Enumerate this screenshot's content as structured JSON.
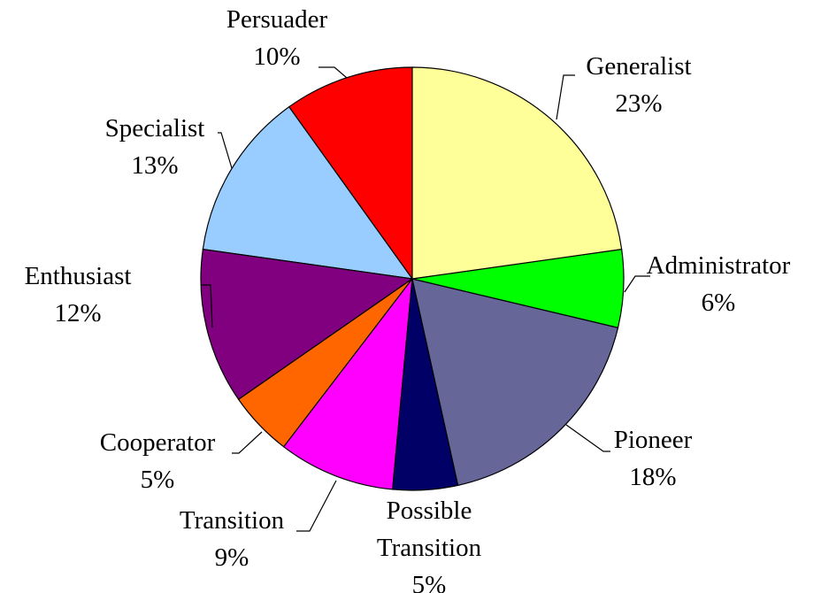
{
  "chart_data": {
    "type": "pie",
    "categories": [
      "Generalist",
      "Administrator",
      "Pioneer",
      "Possible Transition",
      "Transition",
      "Cooperator",
      "Enthusiast",
      "Specialist",
      "Persuader"
    ],
    "values": [
      23,
      6,
      18,
      5,
      9,
      5,
      12,
      13,
      10
    ],
    "value_labels": [
      "23%",
      "6%",
      "18%",
      "5%",
      "9%",
      "5%",
      "12%",
      "13%",
      "10%"
    ],
    "colors": [
      "#FFFF99",
      "#00FF00",
      "#666699",
      "#000066",
      "#FF00FF",
      "#FF6600",
      "#800080",
      "#99CCFF",
      "#FF0000"
    ]
  }
}
